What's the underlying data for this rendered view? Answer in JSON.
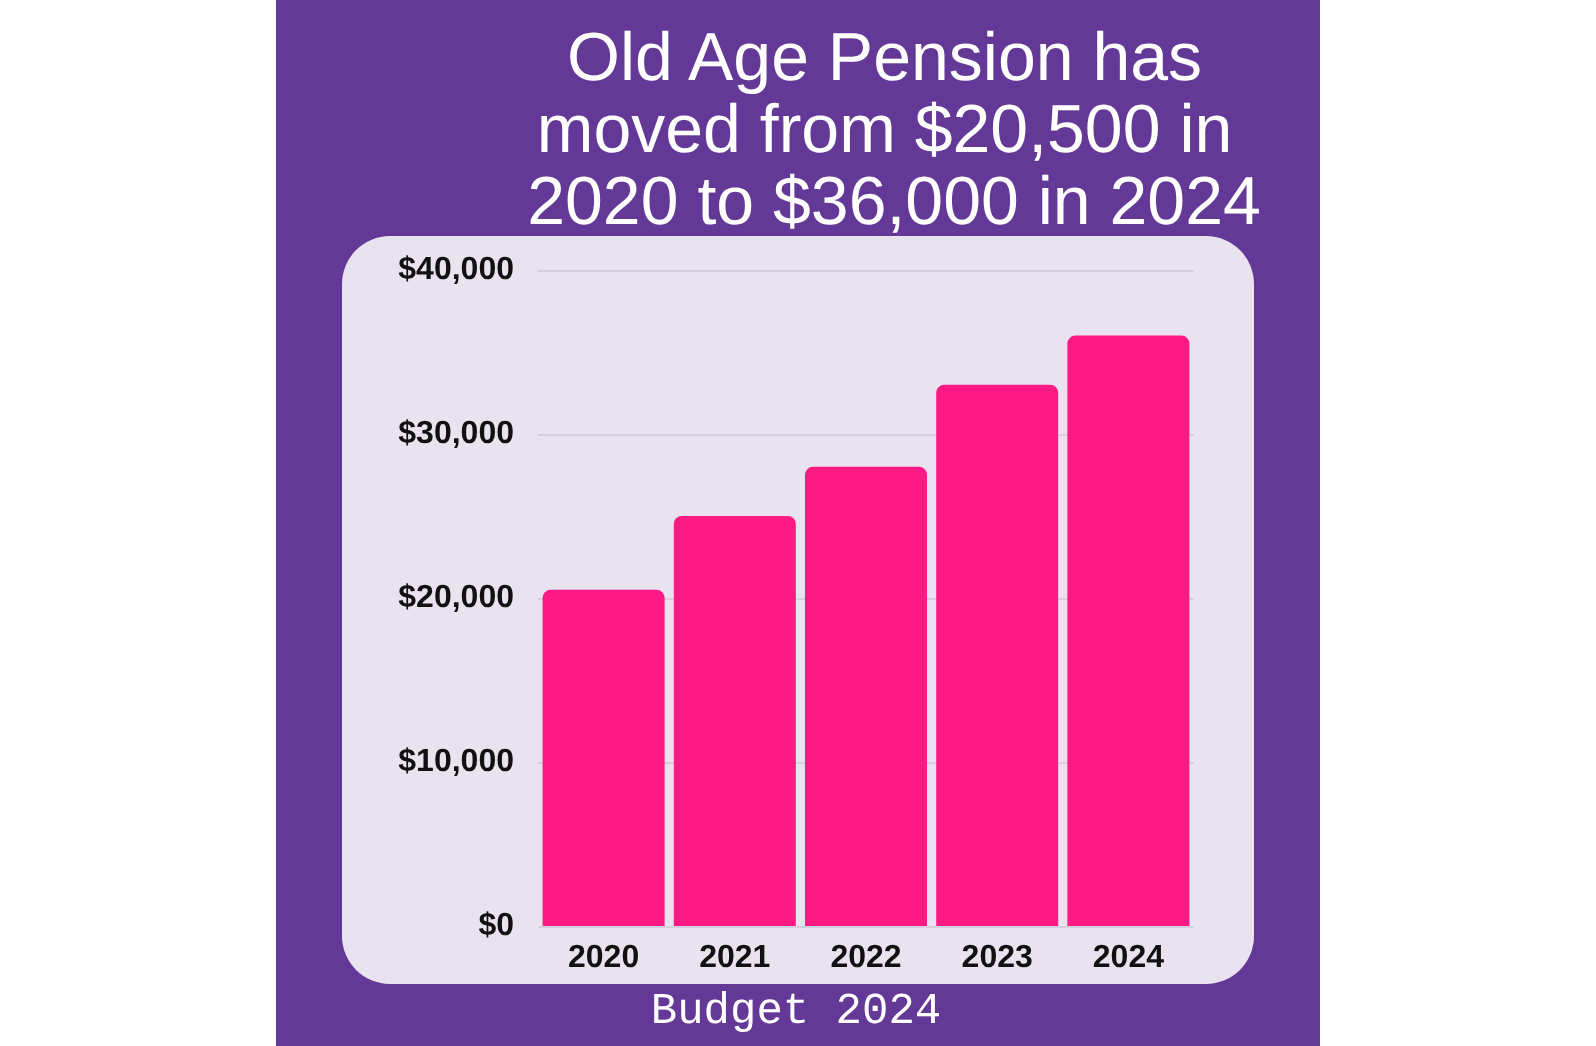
{
  "chart_data": {
    "type": "bar",
    "title": "Old Age Pension has moved from $20,500 in 2020 to $36,000 in 2024",
    "categories": [
      "2020",
      "2021",
      "2022",
      "2023",
      "2024"
    ],
    "values": [
      20500,
      25000,
      28000,
      33000,
      36000
    ],
    "color": "#fe1a84",
    "ylim": [
      0,
      40000
    ],
    "yticks": [
      {
        "value": 0,
        "label": "$0"
      },
      {
        "value": 10000,
        "label": "$10,000"
      },
      {
        "value": 20000,
        "label": "$20,000"
      },
      {
        "value": 30000,
        "label": "$30,000"
      },
      {
        "value": 40000,
        "label": "$40,000"
      }
    ],
    "grid": "y",
    "annotations": [
      "Budget 2024"
    ]
  }
}
